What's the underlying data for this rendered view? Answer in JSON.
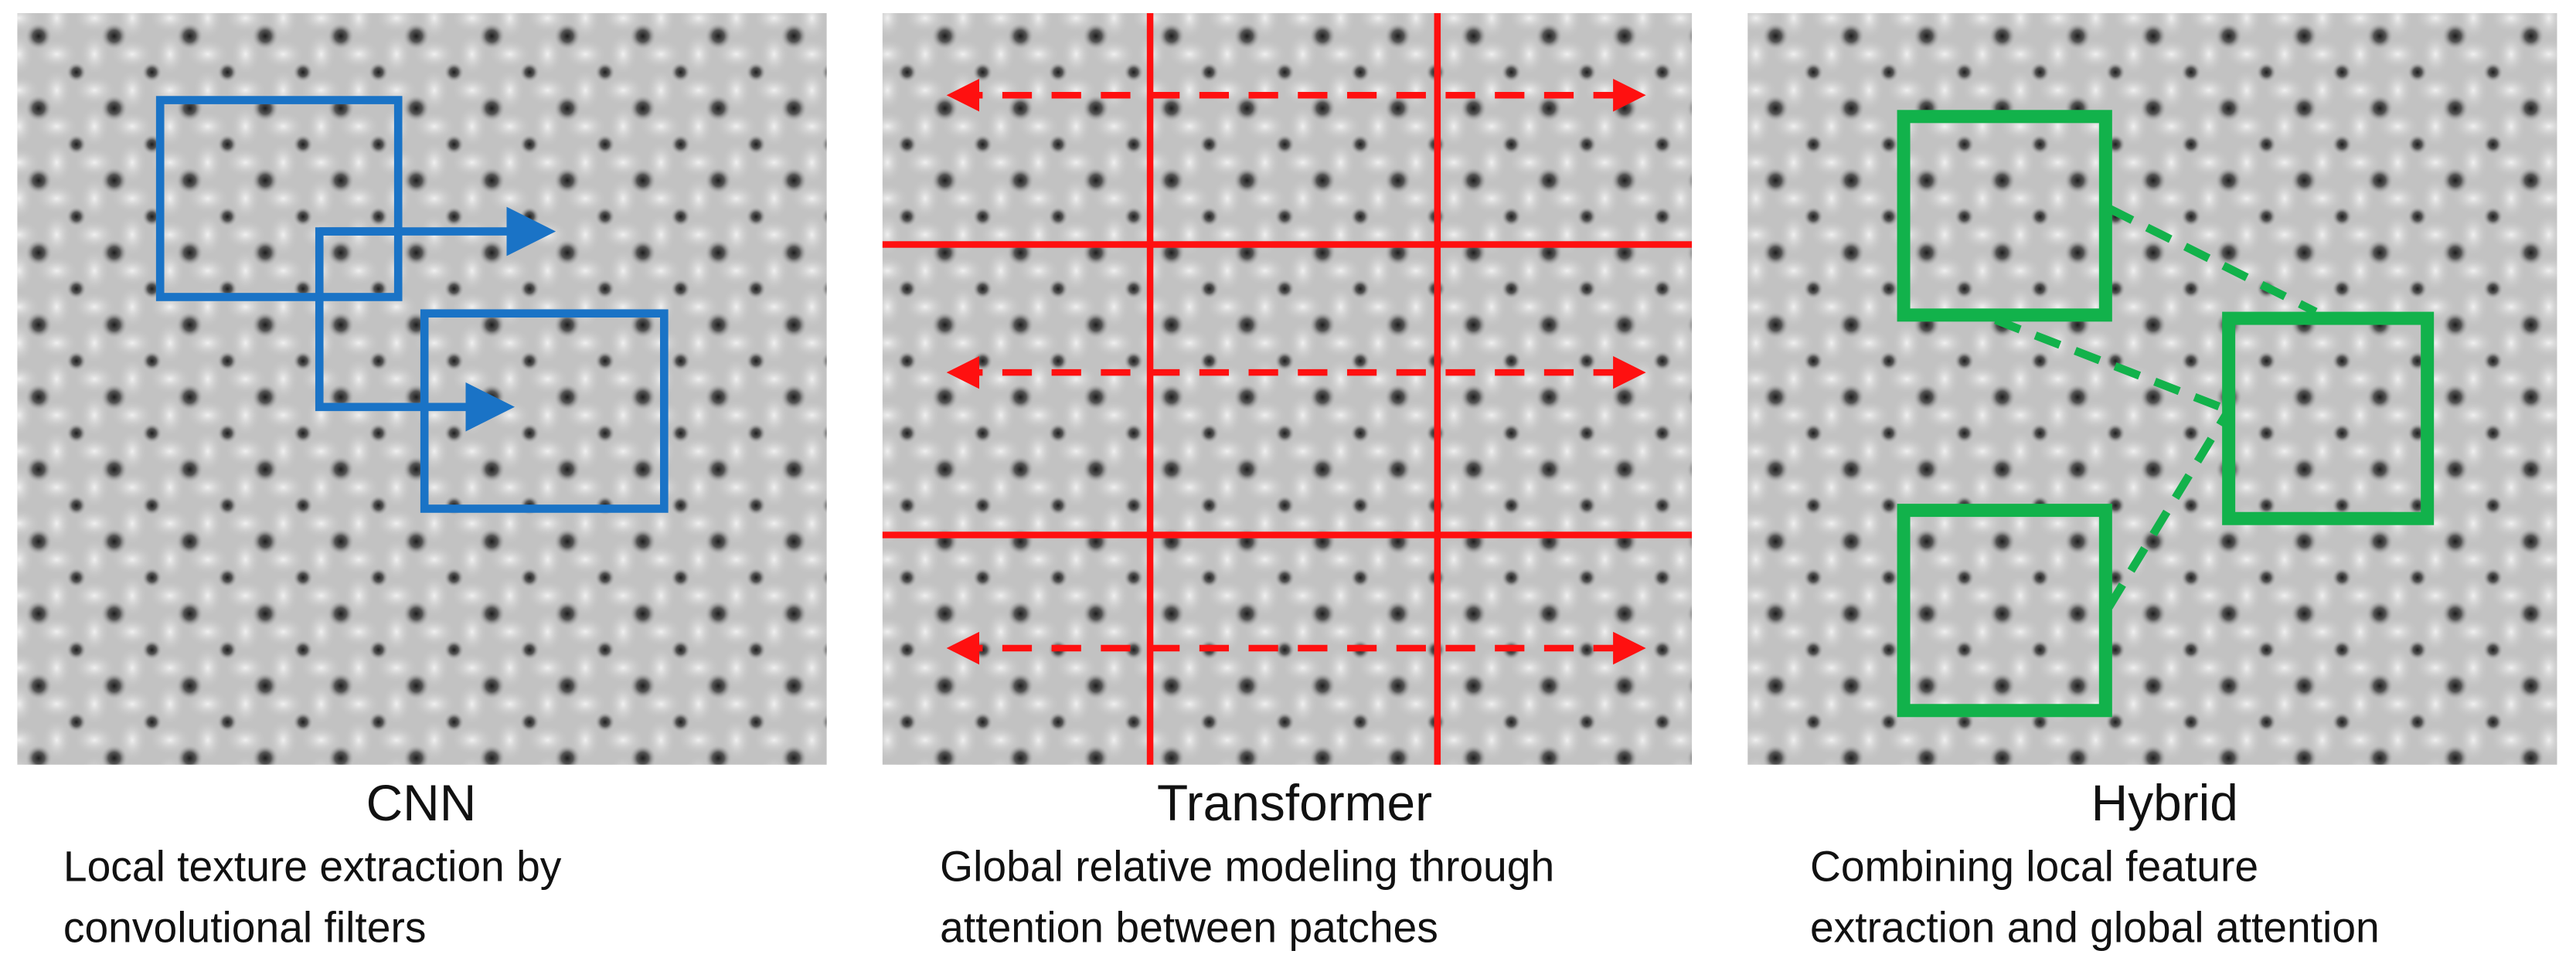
{
  "panels": [
    {
      "title": "CNN",
      "description": [
        "Local texture extraction by",
        "convolutional filters"
      ]
    },
    {
      "title": "Transformer",
      "description": [
        "Global relative modeling through",
        "attention between patches"
      ]
    },
    {
      "title": "Hybrid",
      "description": [
        "Combining local feature",
        "extraction and global attention"
      ]
    }
  ]
}
